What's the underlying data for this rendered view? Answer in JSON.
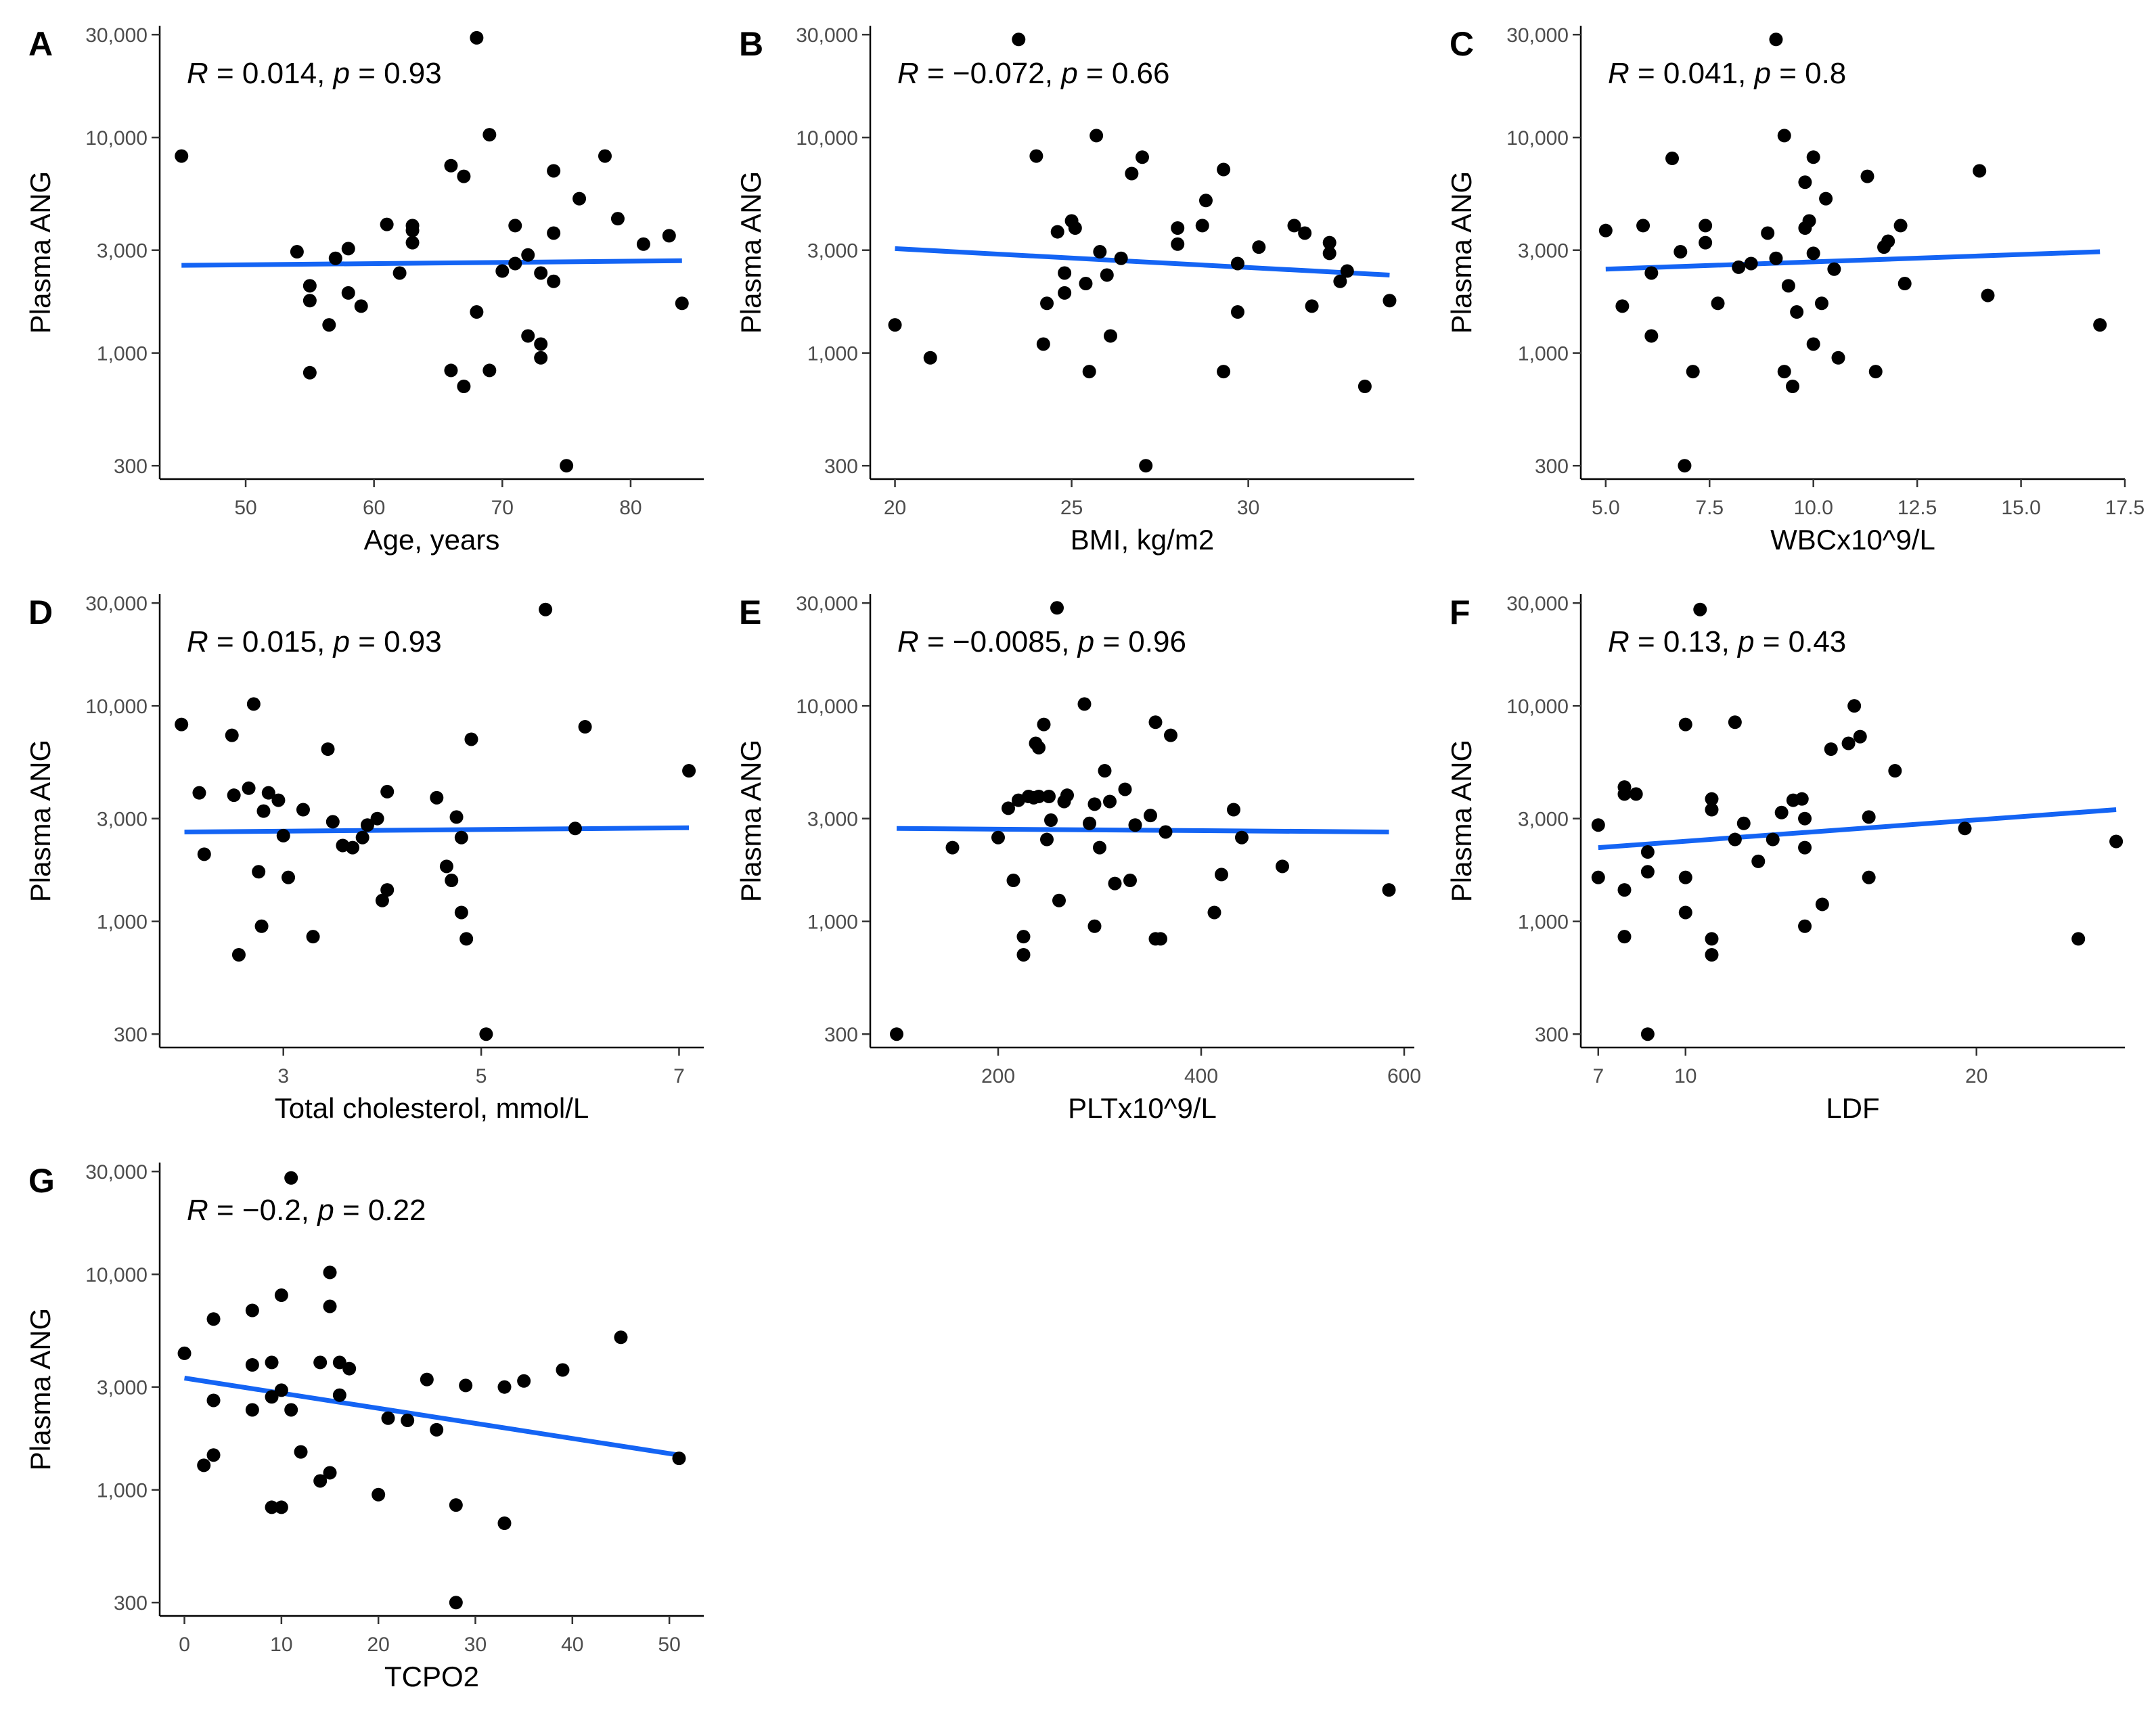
{
  "figure": {
    "y_axis_label": "Plasma ANG",
    "y_scale": "log10",
    "y_ticks": [
      300,
      1000,
      3000,
      10000,
      30000
    ],
    "y_tick_labels": [
      "300",
      "1,000",
      "3,000",
      "10,000",
      "30,000"
    ],
    "colors": {
      "point": "#000000",
      "fit_line": "#1464F4"
    }
  },
  "chart_data": [
    {
      "type": "scatter",
      "panel": "A",
      "xlabel": "Age, years",
      "ylabel": "Plasma ANG",
      "xlim": [
        43.3,
        85.7
      ],
      "ylim": [
        260,
        33000
      ],
      "x_ticks": [
        50,
        60,
        70,
        80
      ],
      "x_tick_labels": [
        "50",
        "60",
        "70",
        "80"
      ],
      "annotation": {
        "r_value": "0.014",
        "p_value": "0.93"
      },
      "fit": {
        "x": [
          45,
          84
        ],
        "y": [
          2550,
          2680
        ]
      },
      "points": [
        [
          45,
          8200
        ],
        [
          54,
          2950
        ],
        [
          55,
          2050
        ],
        [
          55,
          1750
        ],
        [
          55,
          810
        ],
        [
          56.5,
          1350
        ],
        [
          57,
          2750
        ],
        [
          58,
          3050
        ],
        [
          58,
          1900
        ],
        [
          59,
          1650
        ],
        [
          61,
          3950
        ],
        [
          62,
          2350
        ],
        [
          63,
          3900
        ],
        [
          63,
          3700
        ],
        [
          63,
          3250
        ],
        [
          66,
          7400
        ],
        [
          66,
          830
        ],
        [
          67,
          6600
        ],
        [
          67,
          700
        ],
        [
          68,
          29000
        ],
        [
          68,
          1550
        ],
        [
          69,
          10300
        ],
        [
          69,
          830
        ],
        [
          70,
          2400
        ],
        [
          71,
          3900
        ],
        [
          71,
          2600
        ],
        [
          72,
          2850
        ],
        [
          72,
          1200
        ],
        [
          73,
          2350
        ],
        [
          73,
          1100
        ],
        [
          73,
          950
        ],
        [
          74,
          7000
        ],
        [
          74,
          3600
        ],
        [
          74,
          2150
        ],
        [
          75,
          300
        ],
        [
          76,
          5200
        ],
        [
          78,
          8200
        ],
        [
          79,
          4200
        ],
        [
          81,
          3200
        ],
        [
          83,
          3500
        ],
        [
          84,
          1700
        ]
      ]
    },
    {
      "type": "scatter",
      "panel": "B",
      "xlabel": "BMI, kg/m2",
      "ylabel": "Plasma ANG",
      "xlim": [
        19.3,
        34.7
      ],
      "ylim": [
        260,
        33000
      ],
      "x_ticks": [
        20,
        25,
        30
      ],
      "x_tick_labels": [
        "20",
        "25",
        "30"
      ],
      "annotation": {
        "r_value": "−0.072",
        "p_value": "0.66"
      },
      "fit": {
        "x": [
          20,
          34
        ],
        "y": [
          3050,
          2300
        ]
      },
      "points": [
        [
          20,
          1350
        ],
        [
          21,
          950
        ],
        [
          23.5,
          28500
        ],
        [
          24,
          8200
        ],
        [
          24.2,
          1100
        ],
        [
          24.3,
          1700
        ],
        [
          24.6,
          3650
        ],
        [
          24.8,
          1900
        ],
        [
          24.8,
          2350
        ],
        [
          25,
          4100
        ],
        [
          25.1,
          3800
        ],
        [
          25.4,
          2100
        ],
        [
          25.5,
          820
        ],
        [
          25.7,
          10200
        ],
        [
          25.8,
          2950
        ],
        [
          26,
          2300
        ],
        [
          26.1,
          1200
        ],
        [
          26.4,
          2750
        ],
        [
          26.7,
          6800
        ],
        [
          27,
          8100
        ],
        [
          27.1,
          300
        ],
        [
          28,
          3800
        ],
        [
          28,
          3200
        ],
        [
          28.7,
          3900
        ],
        [
          28.8,
          5100
        ],
        [
          29.3,
          7100
        ],
        [
          29.3,
          820
        ],
        [
          29.7,
          2600
        ],
        [
          29.7,
          1550
        ],
        [
          30.3,
          3100
        ],
        [
          31.3,
          3900
        ],
        [
          31.6,
          3600
        ],
        [
          31.8,
          1650
        ],
        [
          32.3,
          3250
        ],
        [
          32.3,
          2900
        ],
        [
          32.6,
          2150
        ],
        [
          32.8,
          2400
        ],
        [
          33.3,
          700
        ],
        [
          34,
          1750
        ]
      ]
    },
    {
      "type": "scatter",
      "panel": "C",
      "xlabel": "WBCx10^9/L",
      "ylabel": "Plasma ANG",
      "xlim": [
        4.4,
        17.5
      ],
      "ylim": [
        260,
        33000
      ],
      "x_ticks": [
        5.0,
        7.5,
        10.0,
        12.5,
        15.0,
        17.5
      ],
      "x_tick_labels": [
        "5.0",
        "7.5",
        "10.0",
        "12.5",
        "15.0",
        "17.5"
      ],
      "annotation": {
        "r_value": "0.041",
        "p_value": "0.8"
      },
      "fit": {
        "x": [
          5,
          16.9
        ],
        "y": [
          2450,
          2950
        ]
      },
      "points": [
        [
          5,
          3700
        ],
        [
          5.4,
          1650
        ],
        [
          5.9,
          3900
        ],
        [
          6.1,
          2350
        ],
        [
          6.1,
          1200
        ],
        [
          6.6,
          8000
        ],
        [
          6.8,
          2950
        ],
        [
          6.9,
          300
        ],
        [
          7.1,
          820
        ],
        [
          7.4,
          3900
        ],
        [
          7.4,
          3250
        ],
        [
          7.7,
          1700
        ],
        [
          8.2,
          2500
        ],
        [
          8.5,
          2600
        ],
        [
          8.9,
          3600
        ],
        [
          9.1,
          28500
        ],
        [
          9.1,
          2750
        ],
        [
          9.3,
          820
        ],
        [
          9.3,
          10200
        ],
        [
          9.4,
          2050
        ],
        [
          9.5,
          700
        ],
        [
          9.6,
          1550
        ],
        [
          9.8,
          6200
        ],
        [
          9.8,
          3800
        ],
        [
          9.9,
          4100
        ],
        [
          10,
          8100
        ],
        [
          10,
          2900
        ],
        [
          10,
          1100
        ],
        [
          10.2,
          1700
        ],
        [
          10.3,
          5200
        ],
        [
          10.5,
          2450
        ],
        [
          10.6,
          950
        ],
        [
          11.3,
          6600
        ],
        [
          11.5,
          820
        ],
        [
          11.7,
          3100
        ],
        [
          11.8,
          3300
        ],
        [
          12.1,
          3900
        ],
        [
          12.2,
          2100
        ],
        [
          14,
          7000
        ],
        [
          14.2,
          1850
        ],
        [
          16.9,
          1350
        ]
      ]
    },
    {
      "type": "scatter",
      "panel": "D",
      "xlabel": "Total cholesterol, mmol/L",
      "ylabel": "Plasma ANG",
      "xlim": [
        1.75,
        7.25
      ],
      "ylim": [
        260,
        33000
      ],
      "x_ticks": [
        3,
        5,
        7
      ],
      "x_tick_labels": [
        "3",
        "5",
        "7"
      ],
      "annotation": {
        "r_value": "0.015",
        "p_value": "0.93"
      },
      "fit": {
        "x": [
          2,
          7.1
        ],
        "y": [
          2600,
          2720
        ]
      },
      "points": [
        [
          1.97,
          8200
        ],
        [
          2.15,
          3950
        ],
        [
          2.2,
          2050
        ],
        [
          2.48,
          7300
        ],
        [
          2.5,
          3850
        ],
        [
          2.55,
          700
        ],
        [
          2.65,
          4150
        ],
        [
          2.7,
          10200
        ],
        [
          2.75,
          1700
        ],
        [
          2.78,
          950
        ],
        [
          2.8,
          3250
        ],
        [
          2.85,
          3950
        ],
        [
          2.95,
          3650
        ],
        [
          3.0,
          2500
        ],
        [
          3.05,
          1600
        ],
        [
          3.2,
          3300
        ],
        [
          3.3,
          850
        ],
        [
          3.45,
          6300
        ],
        [
          3.5,
          2900
        ],
        [
          3.6,
          2250
        ],
        [
          3.7,
          2200
        ],
        [
          3.8,
          2450
        ],
        [
          3.85,
          2800
        ],
        [
          3.95,
          3000
        ],
        [
          4.0,
          1250
        ],
        [
          4.05,
          4000
        ],
        [
          4.05,
          1400
        ],
        [
          4.55,
          3750
        ],
        [
          4.65,
          1800
        ],
        [
          4.7,
          1550
        ],
        [
          4.75,
          3050
        ],
        [
          4.8,
          2450
        ],
        [
          4.8,
          1100
        ],
        [
          4.85,
          830
        ],
        [
          4.9,
          7000
        ],
        [
          5.05,
          300
        ],
        [
          5.65,
          28000
        ],
        [
          5.95,
          2700
        ],
        [
          6.05,
          8000
        ],
        [
          7.1,
          5000
        ]
      ]
    },
    {
      "type": "scatter",
      "panel": "E",
      "xlabel": "PLTx10^9/L",
      "ylabel": "Plasma ANG",
      "xlim": [
        74,
        610
      ],
      "ylim": [
        260,
        33000
      ],
      "x_ticks": [
        200,
        400,
        600
      ],
      "x_tick_labels": [
        "200",
        "400",
        "600"
      ],
      "annotation": {
        "r_value": "−0.0085",
        "p_value": "0.96"
      },
      "fit": {
        "x": [
          100,
          585
        ],
        "y": [
          2700,
          2600
        ]
      },
      "points": [
        [
          100,
          300
        ],
        [
          155,
          2200
        ],
        [
          200,
          2450
        ],
        [
          210,
          3350
        ],
        [
          215,
          1550
        ],
        [
          220,
          3650
        ],
        [
          225,
          850
        ],
        [
          225,
          700
        ],
        [
          230,
          3800
        ],
        [
          235,
          3750
        ],
        [
          237,
          6700
        ],
        [
          240,
          6400
        ],
        [
          240,
          3800
        ],
        [
          245,
          8200
        ],
        [
          248,
          2400
        ],
        [
          250,
          3800
        ],
        [
          252,
          2950
        ],
        [
          258,
          28500
        ],
        [
          260,
          1250
        ],
        [
          265,
          3600
        ],
        [
          268,
          3850
        ],
        [
          285,
          10200
        ],
        [
          290,
          2850
        ],
        [
          295,
          3500
        ],
        [
          295,
          950
        ],
        [
          300,
          2200
        ],
        [
          305,
          5000
        ],
        [
          310,
          3600
        ],
        [
          315,
          1500
        ],
        [
          325,
          4100
        ],
        [
          330,
          1550
        ],
        [
          335,
          2800
        ],
        [
          350,
          3100
        ],
        [
          355,
          8400
        ],
        [
          355,
          830
        ],
        [
          360,
          830
        ],
        [
          365,
          2600
        ],
        [
          370,
          7300
        ],
        [
          413,
          1100
        ],
        [
          420,
          1650
        ],
        [
          432,
          3300
        ],
        [
          440,
          2450
        ],
        [
          480,
          1800
        ],
        [
          585,
          1400
        ]
      ]
    },
    {
      "type": "scatter",
      "panel": "F",
      "xlabel": "LDF",
      "ylabel": "Plasma ANG",
      "xlim": [
        6.4,
        25.1
      ],
      "ylim": [
        260,
        33000
      ],
      "x_ticks": [
        7,
        10,
        20
      ],
      "x_tick_labels": [
        "7",
        "10",
        "20"
      ],
      "annotation": {
        "r_value": "0.13",
        "p_value": "0.43"
      },
      "fit": {
        "x": [
          7,
          24.8
        ],
        "y": [
          2200,
          3300
        ]
      },
      "points": [
        [
          7,
          2800
        ],
        [
          7,
          1600
        ],
        [
          7.9,
          4200
        ],
        [
          7.9,
          3900
        ],
        [
          7.9,
          1400
        ],
        [
          7.9,
          850
        ],
        [
          8.3,
          3900
        ],
        [
          8.7,
          2100
        ],
        [
          8.7,
          1700
        ],
        [
          8.7,
          300
        ],
        [
          10,
          8200
        ],
        [
          10,
          1600
        ],
        [
          10,
          1100
        ],
        [
          10.5,
          28000
        ],
        [
          10.9,
          3700
        ],
        [
          10.9,
          3300
        ],
        [
          10.9,
          830
        ],
        [
          10.9,
          700
        ],
        [
          11.7,
          8400
        ],
        [
          11.7,
          2400
        ],
        [
          12,
          2850
        ],
        [
          12.5,
          1900
        ],
        [
          13,
          2400
        ],
        [
          13.3,
          3200
        ],
        [
          13.7,
          3650
        ],
        [
          14,
          3700
        ],
        [
          14.1,
          3000
        ],
        [
          14.1,
          2200
        ],
        [
          14.1,
          950
        ],
        [
          14.7,
          1200
        ],
        [
          15,
          6300
        ],
        [
          15.6,
          6700
        ],
        [
          15.8,
          10000
        ],
        [
          16,
          7200
        ],
        [
          16.3,
          3050
        ],
        [
          16.3,
          1600
        ],
        [
          17.2,
          5000
        ],
        [
          19.6,
          2700
        ],
        [
          23.5,
          830
        ],
        [
          24.8,
          2350
        ]
      ]
    },
    {
      "type": "scatter",
      "panel": "G",
      "xlabel": "TCPO2",
      "ylabel": "Plasma ANG",
      "xlim": [
        -2.55,
        53.55
      ],
      "ylim": [
        260,
        33000
      ],
      "x_ticks": [
        0,
        10,
        20,
        30,
        40,
        50
      ],
      "x_tick_labels": [
        "0",
        "10",
        "20",
        "30",
        "40",
        "50"
      ],
      "annotation": {
        "r_value": "−0.2",
        "p_value": "0.22"
      },
      "fit": {
        "x": [
          0,
          51
        ],
        "y": [
          3300,
          1450
        ]
      },
      "points": [
        [
          0,
          4300
        ],
        [
          2,
          1300
        ],
        [
          3,
          6200
        ],
        [
          3,
          2600
        ],
        [
          3,
          1450
        ],
        [
          7,
          6800
        ],
        [
          7,
          3800
        ],
        [
          7,
          2350
        ],
        [
          9,
          3900
        ],
        [
          9,
          2700
        ],
        [
          9,
          830
        ],
        [
          10,
          8000
        ],
        [
          10,
          2900
        ],
        [
          10,
          830
        ],
        [
          11,
          28000
        ],
        [
          11,
          2350
        ],
        [
          12,
          1500
        ],
        [
          14,
          3900
        ],
        [
          14,
          1100
        ],
        [
          15,
          10200
        ],
        [
          15,
          7100
        ],
        [
          15,
          1200
        ],
        [
          16,
          3900
        ],
        [
          16,
          2750
        ],
        [
          17,
          3650
        ],
        [
          20,
          950
        ],
        [
          21,
          2150
        ],
        [
          23,
          2100
        ],
        [
          25,
          3250
        ],
        [
          26,
          1900
        ],
        [
          28,
          850
        ],
        [
          28,
          300
        ],
        [
          29,
          3050
        ],
        [
          33,
          3000
        ],
        [
          33,
          700
        ],
        [
          35,
          3200
        ],
        [
          39,
          3600
        ],
        [
          45,
          5100
        ],
        [
          51,
          1400
        ]
      ]
    }
  ]
}
